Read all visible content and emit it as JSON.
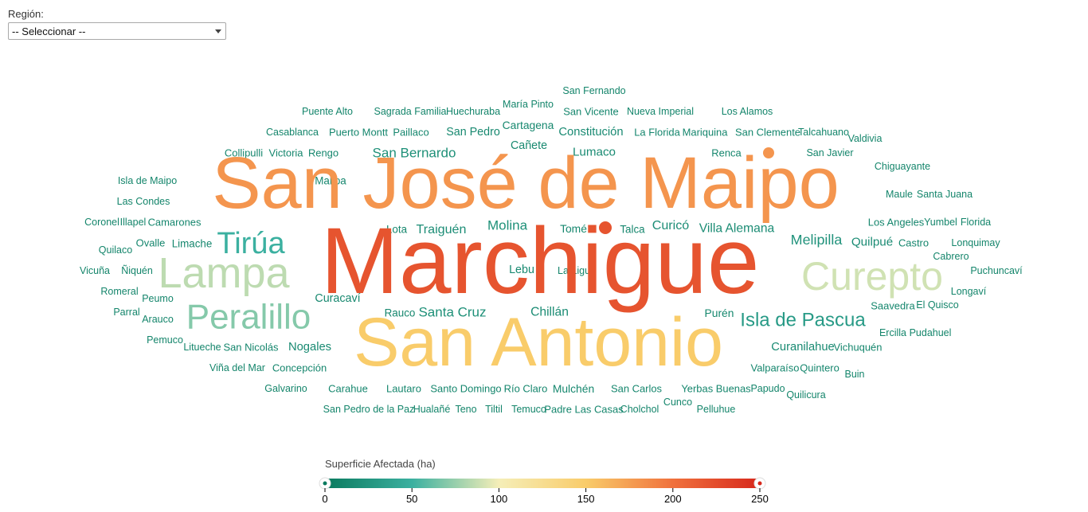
{
  "filter": {
    "label": "Región:",
    "selected": "-- Seleccionar --"
  },
  "legend": {
    "title": "Superficie Afectada (ha)",
    "ticks": [
      0,
      50,
      100,
      150,
      200,
      250
    ],
    "min": 0,
    "max": 250,
    "colors": [
      "#0a7a5e",
      "#3bb0a0",
      "#f5eeb8",
      "#f9cc6a",
      "#f0713c",
      "#d7281c"
    ]
  },
  "chart_data": {
    "type": "wordcloud",
    "value_label": "Superficie Afectada (ha)",
    "scale": [
      0,
      250
    ],
    "words": [
      {
        "text": "Marchigue",
        "value": 220
      },
      {
        "text": "San José de Maipo",
        "value": 180
      },
      {
        "text": "San Antonio",
        "value": 150
      },
      {
        "text": "Curepto",
        "value": 90
      },
      {
        "text": "Lampa",
        "value": 85
      },
      {
        "text": "Peralillo",
        "value": 70
      },
      {
        "text": "Tirúa",
        "value": 50
      },
      {
        "text": "Isla de Pascua",
        "value": 30
      },
      {
        "text": "Melipilla",
        "value": 22
      },
      {
        "text": "San Bernardo",
        "value": 20
      },
      {
        "text": "Molina",
        "value": 20
      },
      {
        "text": "Santa Cruz",
        "value": 20
      },
      {
        "text": "Traiguén",
        "value": 18
      },
      {
        "text": "Curicó",
        "value": 18
      },
      {
        "text": "Chillán",
        "value": 17
      },
      {
        "text": "Villa Alemana",
        "value": 17
      },
      {
        "text": "Lumaco",
        "value": 16
      },
      {
        "text": "Quilpué",
        "value": 16
      },
      {
        "text": "Nogales",
        "value": 15
      },
      {
        "text": "Constitución",
        "value": 15
      },
      {
        "text": "Curanilahue",
        "value": 15
      },
      {
        "text": "Cañete",
        "value": 14
      },
      {
        "text": "Curacaví",
        "value": 14
      },
      {
        "text": "San Pedro",
        "value": 14
      },
      {
        "text": "Lebu",
        "value": 14
      },
      {
        "text": "Cartagena",
        "value": 13
      },
      {
        "text": "Mulchén",
        "value": 13
      },
      {
        "text": "Purén",
        "value": 13
      },
      {
        "text": "Tomé",
        "value": 13
      },
      {
        "text": "Lota",
        "value": 12
      },
      {
        "text": "Rauco",
        "value": 12
      },
      {
        "text": "Malloa",
        "value": 12
      },
      {
        "text": "Limache",
        "value": 12
      },
      {
        "text": "Talca",
        "value": 12
      },
      {
        "text": "Castro",
        "value": 11
      },
      {
        "text": "Los Angeles",
        "value": 11
      },
      {
        "text": "Renca",
        "value": 11
      },
      {
        "text": "Rengo",
        "value": 11
      },
      {
        "text": "Victoria",
        "value": 11
      },
      {
        "text": "Collipulli",
        "value": 11
      },
      {
        "text": "Ovalle",
        "value": 11
      },
      {
        "text": "Camarones",
        "value": 11
      },
      {
        "text": "Santo Domingo",
        "value": 11
      },
      {
        "text": "Río Claro",
        "value": 11
      },
      {
        "text": "San Carlos",
        "value": 11
      },
      {
        "text": "Lautaro",
        "value": 11
      },
      {
        "text": "Carahue",
        "value": 11
      },
      {
        "text": "Concepción",
        "value": 11
      },
      {
        "text": "San Nicolás",
        "value": 11
      },
      {
        "text": "Quintero",
        "value": 11
      },
      {
        "text": "Valparaíso",
        "value": 11
      },
      {
        "text": "Vichuquén",
        "value": 11
      },
      {
        "text": "La Florida",
        "value": 11
      },
      {
        "text": "Mariquina",
        "value": 11
      },
      {
        "text": "San Clemente",
        "value": 11
      },
      {
        "text": "Paillaco",
        "value": 11
      },
      {
        "text": "Puerto Montt",
        "value": 11
      },
      {
        "text": "San Vicente",
        "value": 11
      },
      {
        "text": "Padre Las Casas",
        "value": 11
      },
      {
        "text": "Yerbas Buenas",
        "value": 11
      },
      {
        "text": "Saavedra",
        "value": 11
      },
      {
        "text": "Hualañé",
        "value": 10
      },
      {
        "text": "Temuco",
        "value": 10
      },
      {
        "text": "Tiltil",
        "value": 10
      },
      {
        "text": "Teno",
        "value": 10
      },
      {
        "text": "San Pedro de la Paz",
        "value": 10
      },
      {
        "text": "Cholchol",
        "value": 10
      },
      {
        "text": "Pelluhue",
        "value": 10
      },
      {
        "text": "Papudo",
        "value": 10
      },
      {
        "text": "Quilicura",
        "value": 10
      },
      {
        "text": "Buin",
        "value": 10
      },
      {
        "text": "Ercilla",
        "value": 10
      },
      {
        "text": "Pudahuel",
        "value": 10
      },
      {
        "text": "El Quisco",
        "value": 10
      },
      {
        "text": "Longaví",
        "value": 10
      },
      {
        "text": "Puchuncaví",
        "value": 10
      },
      {
        "text": "Cabrero",
        "value": 10
      },
      {
        "text": "Lonquimay",
        "value": 10
      },
      {
        "text": "Florida",
        "value": 10
      },
      {
        "text": "Yumbel",
        "value": 10
      },
      {
        "text": "Maule",
        "value": 10
      },
      {
        "text": "Santa Juana",
        "value": 10
      },
      {
        "text": "Chiguayante",
        "value": 10
      },
      {
        "text": "Valdivia",
        "value": 10
      },
      {
        "text": "Talcahuano",
        "value": 10
      },
      {
        "text": "San Javier",
        "value": 10
      },
      {
        "text": "Los Alamos",
        "value": 10
      },
      {
        "text": "Nueva Imperial",
        "value": 10
      },
      {
        "text": "San Fernando",
        "value": 10
      },
      {
        "text": "María Pinto",
        "value": 10
      },
      {
        "text": "Huechuraba",
        "value": 10
      },
      {
        "text": "Sagrada Familia",
        "value": 10
      },
      {
        "text": "Puente Alto",
        "value": 10
      },
      {
        "text": "Casablanca",
        "value": 10
      },
      {
        "text": "Isla de Maipo",
        "value": 10
      },
      {
        "text": "Las Condes",
        "value": 10
      },
      {
        "text": "Coronel",
        "value": 10
      },
      {
        "text": "Illapel",
        "value": 10
      },
      {
        "text": "Quilaco",
        "value": 10
      },
      {
        "text": "Vicuña",
        "value": 10
      },
      {
        "text": "Ñiquén",
        "value": 10
      },
      {
        "text": "Romeral",
        "value": 10
      },
      {
        "text": "Peumo",
        "value": 10
      },
      {
        "text": "Parral",
        "value": 10
      },
      {
        "text": "Arauco",
        "value": 10
      },
      {
        "text": "Pemuco",
        "value": 10
      },
      {
        "text": "Litueche",
        "value": 10
      },
      {
        "text": "Viña del Mar",
        "value": 10
      },
      {
        "text": "Galvarino",
        "value": 10
      },
      {
        "text": "Cunco",
        "value": 10
      },
      {
        "text": "La Ligua",
        "value": 10
      }
    ]
  }
}
